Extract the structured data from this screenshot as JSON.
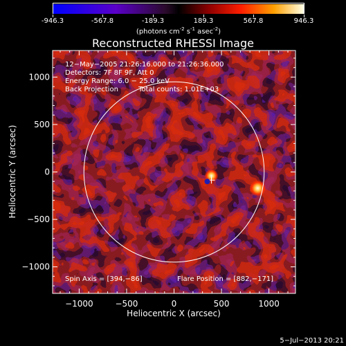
{
  "colorbar": {
    "labels": [
      "-946.3",
      "-567.8",
      "-189.3",
      "189.3",
      "567.8",
      "946.3"
    ],
    "unit_prefix": "(photons cm",
    "unit_exp1": "-2",
    "unit_mid": " s",
    "unit_exp2": "-1",
    "unit_mid2": " asec",
    "unit_exp3": "-2",
    "unit_suffix": ")",
    "range": [
      -946.3,
      946.3
    ]
  },
  "chart_data": {
    "type": "heatmap",
    "title": "Reconstructed RHESSI Image",
    "xlabel": "Heliocentric X (arcsec)",
    "ylabel": "Heliocentric Y (arcsec)",
    "xlim": [
      -1280,
      1280
    ],
    "ylim": [
      -1280,
      1280
    ],
    "xticks": [
      -1000,
      -500,
      0,
      500,
      1000
    ],
    "yticks": [
      -1000,
      -500,
      0,
      500,
      1000
    ],
    "xtick_labels": [
      "−1000",
      "−500",
      "0",
      "500",
      "1000"
    ],
    "ytick_labels": [
      "−1000",
      "−500",
      "0",
      "500",
      "1000"
    ],
    "solar_radius_arcsec": 950,
    "spin_axis": [
      394,
      -86
    ],
    "flare_position": [
      882,
      -171
    ],
    "bright_sources": [
      {
        "x": 882,
        "y": -171,
        "level": 946.3
      },
      {
        "x": 394,
        "y": -40,
        "level": 700
      }
    ]
  },
  "info": {
    "time": "12−May−2005 21:26:16.000 to 21:26:36.000",
    "detectors": "Detectors: 7F 8F 9F, Att 0",
    "energy": "Energy Range: 6.0 − 25.0 keV",
    "method": "Back Projection",
    "counts": "Total counts: 1.01E+03",
    "spin_axis": "Spin Axis = [394,−86]",
    "flare_position": "Flare Position = [882,−171]"
  },
  "timestamp": "5−Jul−2013 20:21"
}
